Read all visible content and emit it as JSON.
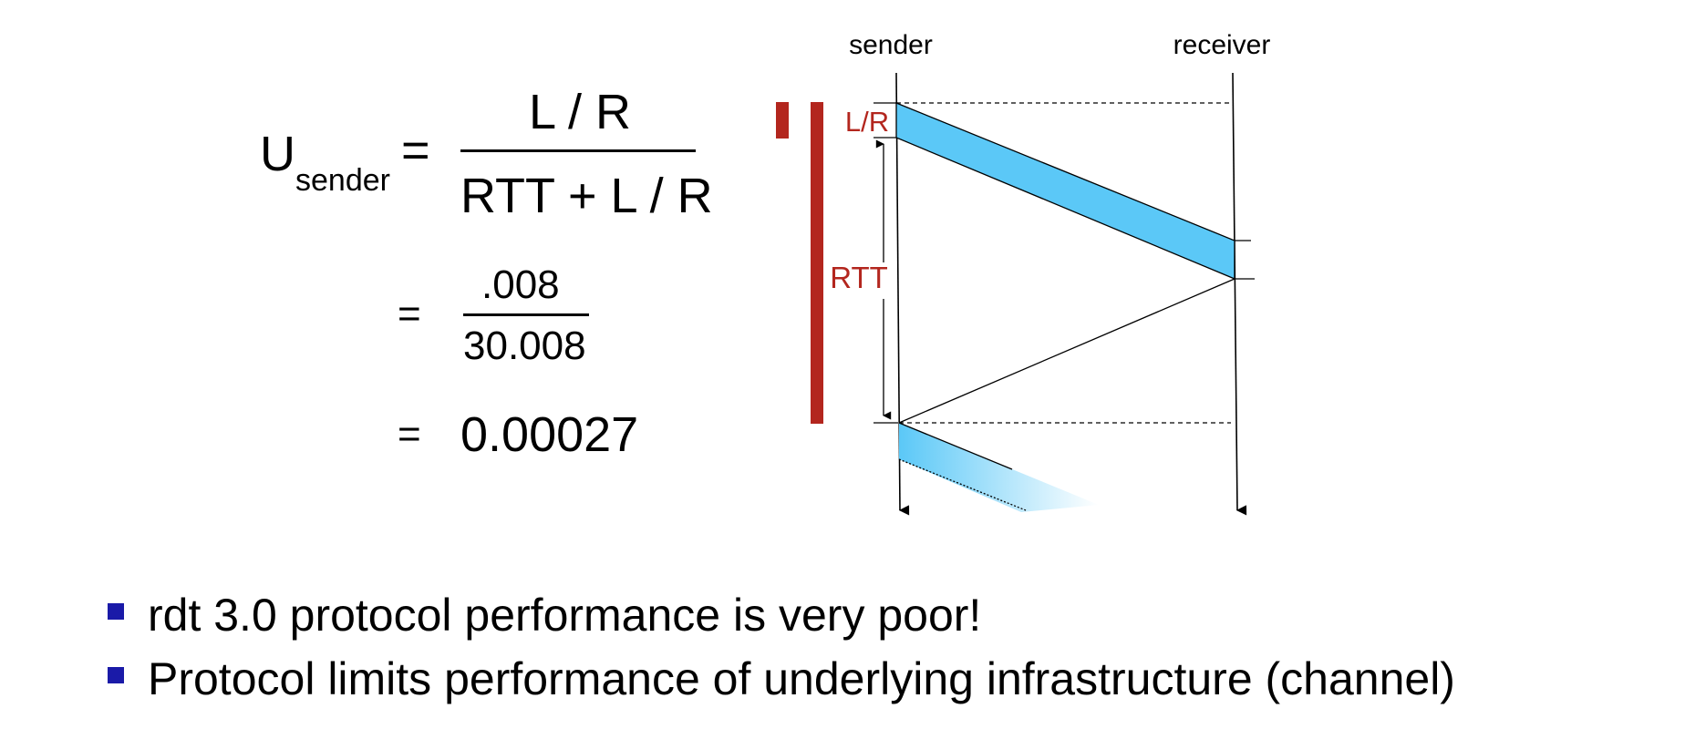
{
  "formula": {
    "u_letter": "U",
    "u_subscript": "sender",
    "equals": "=",
    "numerator": "L / R",
    "denominator": "RTT + L / R",
    "num_value": ".008",
    "den_value": "30.008",
    "result": "0.00027"
  },
  "diagram": {
    "sender_label": "sender",
    "receiver_label": "receiver",
    "lr_label": "L/R",
    "rtt_label": "RTT",
    "accent_color": "#b3261e",
    "packet_color": "#5bc8f7"
  },
  "bullets": [
    "rdt 3.0 protocol performance is very poor!",
    "Protocol limits performance of underlying infrastructure (channel)"
  ]
}
